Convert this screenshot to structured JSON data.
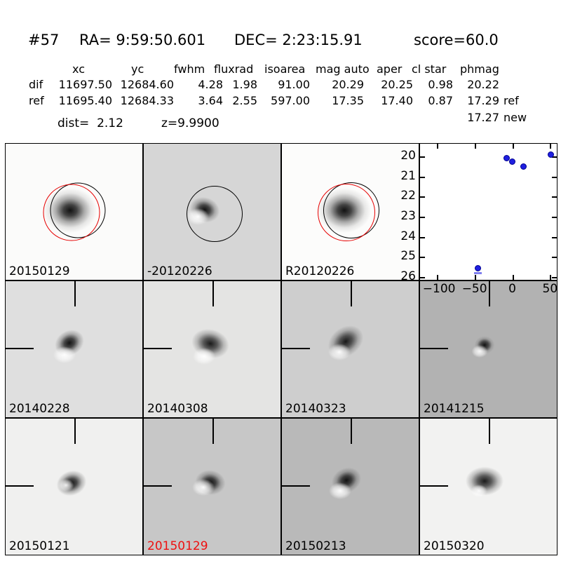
{
  "header": {
    "object_id": "#57",
    "ra": "RA= 9:59:50.601",
    "dec": "DEC= 2:23:15.91",
    "score": "score=60.0"
  },
  "photometry_table": {
    "columns": [
      "xc",
      "yc",
      "fwhm",
      "fluxrad",
      "isoarea",
      "mag auto",
      "aper",
      "cl star",
      "phmag"
    ],
    "rows": [
      {
        "label": "dif",
        "values": [
          "11697.50",
          "12684.60",
          "4.28",
          "1.98",
          "91.00",
          "20.29",
          "20.25",
          "0.98",
          "20.22"
        ],
        "suffix": ""
      },
      {
        "label": "ref",
        "values": [
          "11695.40",
          "12684.33",
          "3.64",
          "2.55",
          "597.00",
          "17.35",
          "17.40",
          "0.87",
          "17.29"
        ],
        "suffix": "ref"
      }
    ],
    "extra": {
      "value": "17.27",
      "suffix": "new"
    }
  },
  "info": {
    "dist": "dist=  2.12",
    "z": "z=9.9900"
  },
  "panels": [
    {
      "kind": "image",
      "label": "20150129",
      "label_color": "#000000",
      "bg": "#fbfbfa",
      "marks": "red-black-circles",
      "blob": "psf-large"
    },
    {
      "kind": "image",
      "label": "-20120226",
      "label_color": "#000000",
      "bg": "#d6d6d6",
      "marks": "black-circle",
      "blob": "dipole"
    },
    {
      "kind": "image",
      "label": "R20120226",
      "label_color": "#000000",
      "bg": "#fcfcfb",
      "marks": "red-black-circles",
      "blob": "psf-large"
    },
    {
      "kind": "chart",
      "label": "",
      "label_color": "#000000",
      "bg": "#ffffff",
      "marks": "none",
      "blob": "none"
    },
    {
      "kind": "image",
      "label": "20140228",
      "label_color": "#000000",
      "bg": "#dfdfdf",
      "marks": "crosshair",
      "blob": "dipole"
    },
    {
      "kind": "image",
      "label": "20140308",
      "label_color": "#000000",
      "bg": "#e4e4e3",
      "marks": "crosshair",
      "blob": "dipole"
    },
    {
      "kind": "image",
      "label": "20140323",
      "label_color": "#000000",
      "bg": "#cecece",
      "marks": "crosshair",
      "blob": "dipole"
    },
    {
      "kind": "image",
      "label": "20141215",
      "label_color": "#000000",
      "bg": "#b2b2b2",
      "marks": "crosshair",
      "blob": "dipole-small"
    },
    {
      "kind": "image",
      "label": "20150121",
      "label_color": "#000000",
      "bg": "#f0f0ef",
      "marks": "crosshair",
      "blob": "dipole"
    },
    {
      "kind": "image",
      "label": "20150129",
      "label_color": "#ee1111",
      "bg": "#c7c7c7",
      "marks": "crosshair",
      "blob": "dipole"
    },
    {
      "kind": "image",
      "label": "20150213",
      "label_color": "#000000",
      "bg": "#b9b9b9",
      "marks": "crosshair",
      "blob": "dipole"
    },
    {
      "kind": "image",
      "label": "20150320",
      "label_color": "#000000",
      "bg": "#f2f2f1",
      "marks": "crosshair",
      "blob": "psf-medium"
    }
  ],
  "chart_data": {
    "type": "scatter",
    "title": "",
    "xlabel": "",
    "ylabel": "",
    "series": [
      {
        "name": "lightcurve-phmag",
        "x": [
          -46,
          -8.6,
          -0.5,
          14,
          50.5
        ],
        "y": [
          25.55,
          20.03,
          20.23,
          20.45,
          19.88
        ],
        "upper_limit": [
          true,
          false,
          false,
          false,
          false
        ]
      }
    ],
    "xlim": [
      -123,
      58
    ],
    "ylim": [
      19.33,
      26.11
    ],
    "y_axis_inverted": true,
    "xticks": [
      -100,
      -50,
      0,
      50
    ],
    "xtick_labels": [
      "−100",
      "−50",
      "0",
      "50"
    ],
    "yticks": [
      20,
      21,
      22,
      23,
      24,
      25,
      26
    ],
    "ytick_labels": [
      "20",
      "21",
      "22",
      "23",
      "24",
      "25",
      "26"
    ],
    "marker_color": "#1f1fe0",
    "limit_marker_color": "#8080ee",
    "grid": false,
    "legend": "none"
  }
}
